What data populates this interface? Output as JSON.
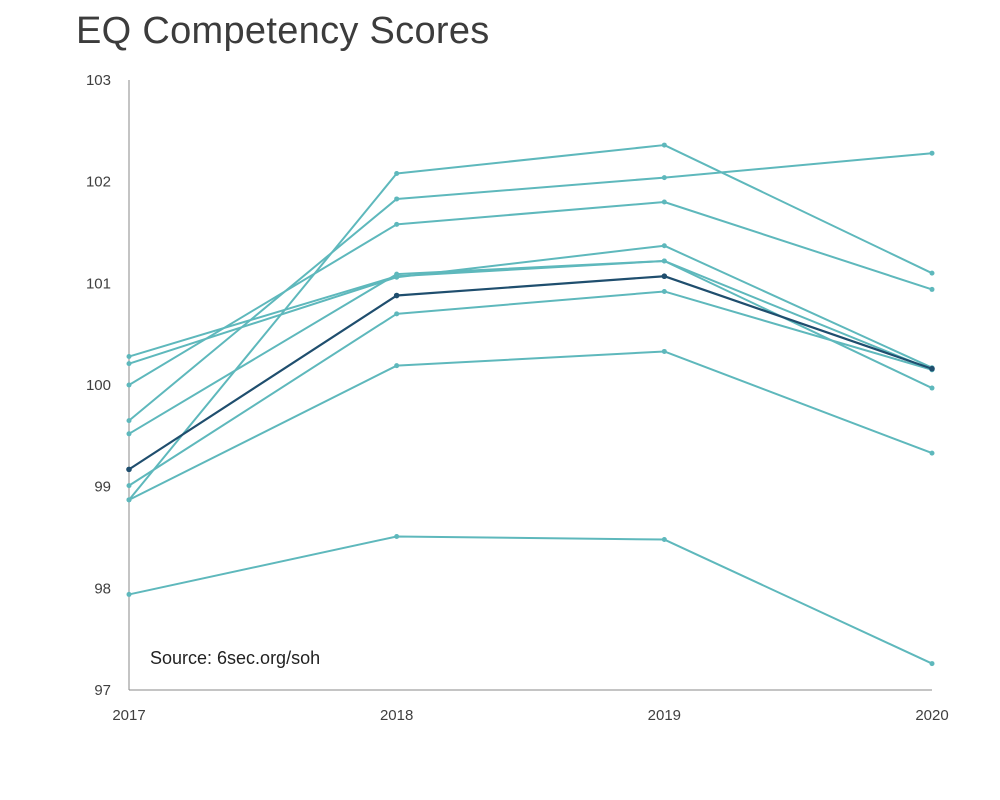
{
  "chart_data": {
    "type": "line",
    "title": "EQ Competency Scores",
    "source": "Source: 6sec.org/soh",
    "xlabel": "",
    "ylabel": "",
    "x": [
      "2017",
      "2018",
      "2019",
      "2020"
    ],
    "ylim": [
      97,
      103
    ],
    "yticks": [
      "97",
      "98",
      "99",
      "100",
      "101",
      "102",
      "103"
    ],
    "grid": false,
    "legend": "none",
    "colors": {
      "series": "#5eb8bc",
      "highlight": "#1f4e6e",
      "axis": "#888888"
    },
    "series": [
      {
        "values": [
          99.65,
          101.83,
          102.04,
          102.28
        ]
      },
      {
        "values": [
          98.87,
          102.08,
          102.36,
          101.1
        ]
      },
      {
        "values": [
          100.0,
          101.58,
          101.8,
          100.94
        ]
      },
      {
        "values": [
          100.21,
          101.06,
          101.37,
          100.17
        ]
      },
      {
        "values": [
          99.52,
          101.09,
          101.22,
          99.97
        ]
      },
      {
        "values": [
          100.28,
          101.07,
          101.22,
          100.15
        ]
      },
      {
        "values": [
          99.01,
          100.7,
          100.92,
          100.15
        ]
      },
      {
        "values": [
          98.87,
          100.19,
          100.33,
          99.33
        ]
      },
      {
        "values": [
          97.94,
          98.51,
          98.48,
          97.26
        ]
      },
      {
        "values": [
          99.17,
          100.88,
          101.07,
          100.16
        ],
        "highlight": true
      }
    ]
  }
}
